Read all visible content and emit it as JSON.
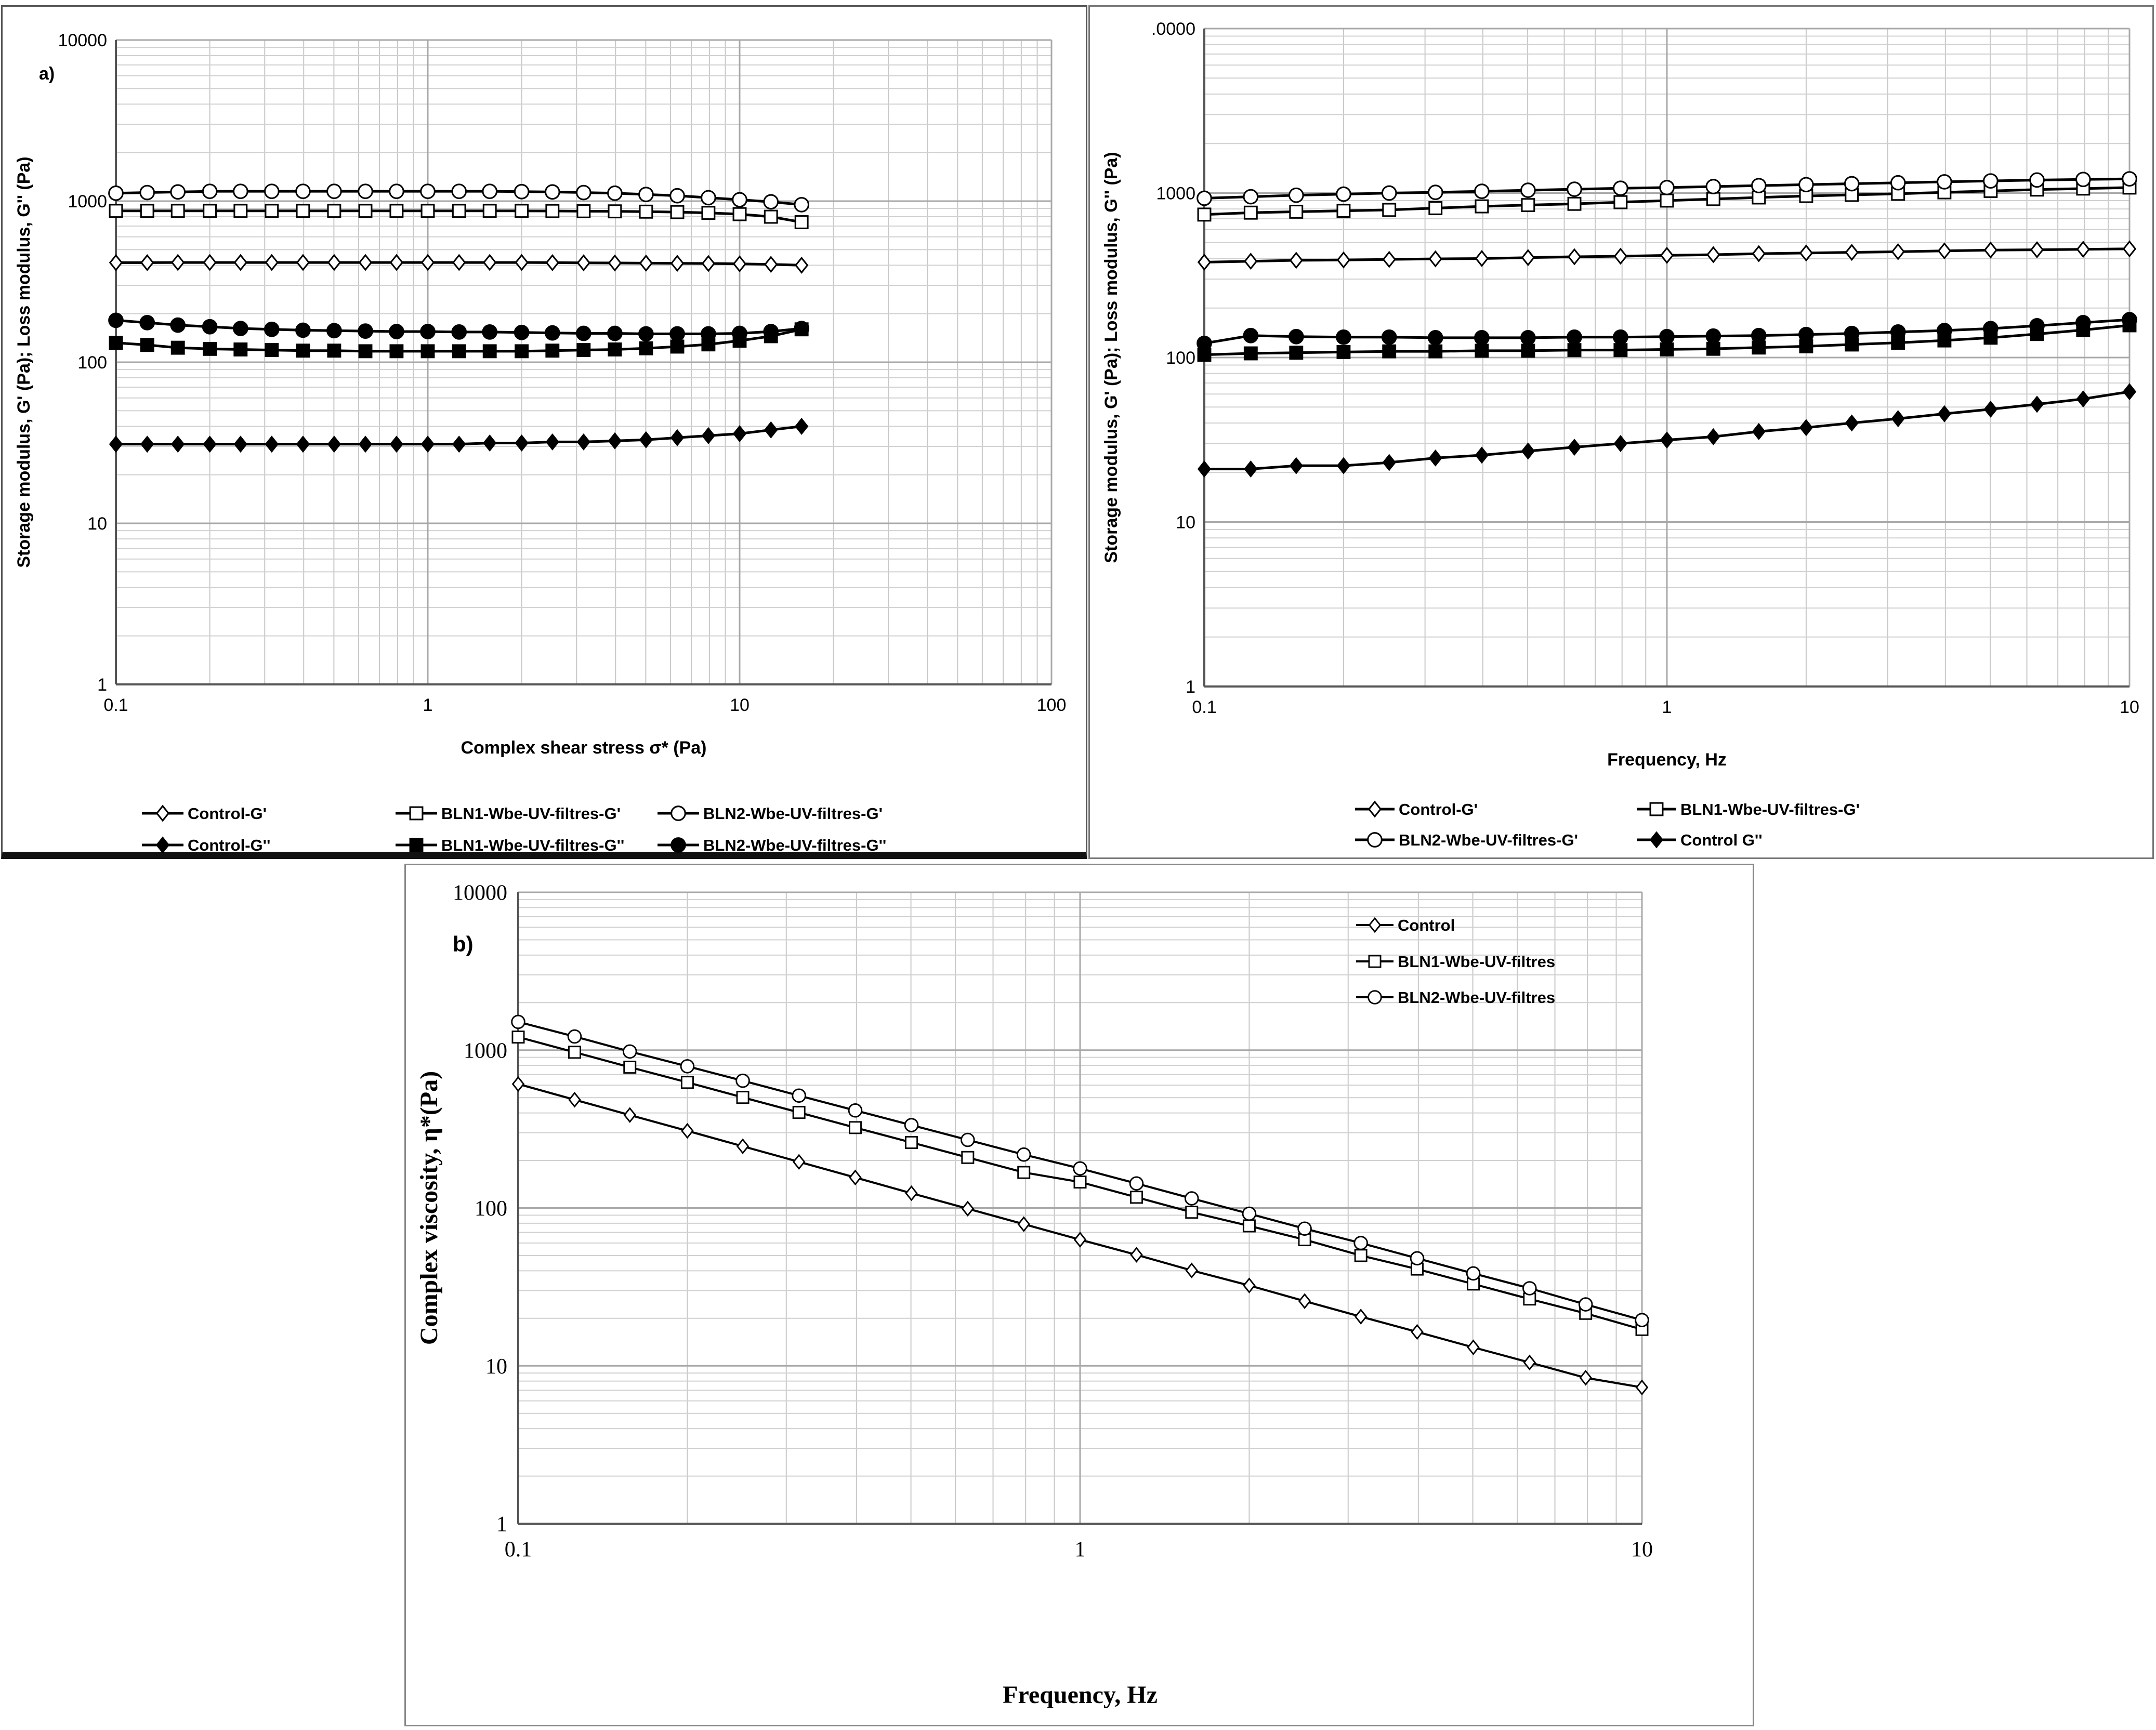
{
  "chart_data": [
    {
      "id": "a",
      "type": "line",
      "panel_label": "a)",
      "xlabel": "Complex shear stress σ* (Pa)",
      "ylabel": "Storage modulus, G' (Pa); Loss modulus, G'' (Pa)",
      "xscale": "log",
      "yscale": "log",
      "xlim": [
        0.1,
        100
      ],
      "ylim": [
        1,
        10000
      ],
      "xticks": [
        "0.1",
        "1",
        "10",
        "100"
      ],
      "yticks": [
        "1",
        "10",
        "100",
        "1000",
        "10000"
      ],
      "grid": true,
      "legend_position": "bottom",
      "x": [
        0.1,
        0.126,
        0.158,
        0.2,
        0.251,
        0.316,
        0.398,
        0.501,
        0.631,
        0.794,
        1.0,
        1.26,
        1.58,
        2.0,
        2.51,
        3.16,
        3.98,
        5.01,
        6.31,
        7.94,
        10.0,
        12.6,
        15.8
      ],
      "series": [
        {
          "name": "Control-G'",
          "marker": "diamond-open",
          "values": [
            415,
            415,
            416,
            416,
            416,
            416,
            416,
            416,
            416,
            416,
            416,
            416,
            416,
            416,
            415,
            414,
            413,
            412,
            411,
            410,
            408,
            405,
            400
          ]
        },
        {
          "name": "BLN1-Wbe-UV-filtres-G'",
          "marker": "square-open",
          "values": [
            870,
            870,
            870,
            870,
            870,
            870,
            870,
            870,
            870,
            870,
            870,
            870,
            870,
            870,
            868,
            866,
            864,
            860,
            855,
            845,
            830,
            800,
            740
          ]
        },
        {
          "name": "BLN2-Wbe-UV-filtres-G'",
          "marker": "circle-open",
          "values": [
            1120,
            1130,
            1140,
            1150,
            1150,
            1150,
            1150,
            1150,
            1150,
            1150,
            1150,
            1150,
            1150,
            1145,
            1140,
            1130,
            1120,
            1100,
            1080,
            1050,
            1020,
            990,
            950
          ]
        },
        {
          "name": "Control-G''",
          "marker": "diamond-filled",
          "values": [
            31,
            31,
            31,
            31,
            31,
            31,
            31,
            31,
            31,
            31,
            31,
            31,
            31.5,
            31.5,
            32,
            32,
            32.5,
            33,
            34,
            35,
            36,
            38,
            40
          ]
        },
        {
          "name": "BLN1-Wbe-UV-filtres-G''",
          "marker": "square-filled",
          "values": [
            132,
            128,
            123,
            121,
            120,
            119,
            118,
            118,
            117,
            117,
            117,
            117,
            117,
            117,
            118,
            119,
            120,
            122,
            125,
            129,
            136,
            145,
            160
          ]
        },
        {
          "name": "BLN2-Wbe-UV-filtres-G''",
          "marker": "circle-filled",
          "values": [
            182,
            176,
            170,
            166,
            162,
            160,
            158,
            157,
            156,
            155,
            155,
            154,
            154,
            153,
            152,
            151,
            151,
            150,
            150,
            150,
            151,
            155,
            162
          ]
        }
      ]
    },
    {
      "id": "c",
      "type": "line",
      "panel_label": "",
      "xlabel": "Frequency, Hz",
      "ylabel": "Storage modulus, G' (Pa); Loss modulus, G'' (Pa)",
      "xscale": "log",
      "yscale": "log",
      "xlim": [
        0.1,
        10
      ],
      "ylim": [
        1,
        10000
      ],
      "xticks": [
        "0.1",
        "1",
        "10"
      ],
      "yticks": [
        "1",
        "10",
        "100",
        "1000",
        ".0000"
      ],
      "grid": true,
      "legend_position": "bottom",
      "x": [
        0.1,
        0.126,
        0.158,
        0.2,
        0.251,
        0.316,
        0.398,
        0.501,
        0.631,
        0.794,
        1.0,
        1.26,
        1.58,
        2.0,
        2.51,
        3.16,
        3.98,
        5.01,
        6.31,
        7.94,
        10.0
      ],
      "series": [
        {
          "name": "Control-G'",
          "marker": "diamond-open",
          "values": [
            380,
            385,
            390,
            392,
            395,
            398,
            400,
            405,
            410,
            413,
            418,
            422,
            428,
            432,
            436,
            440,
            445,
            450,
            452,
            455,
            458
          ]
        },
        {
          "name": "BLN1-Wbe-UV-filtres-G'",
          "marker": "square-open",
          "values": [
            740,
            760,
            770,
            780,
            790,
            810,
            830,
            845,
            860,
            880,
            900,
            920,
            940,
            960,
            975,
            990,
            1010,
            1030,
            1050,
            1065,
            1080
          ]
        },
        {
          "name": "BLN2-Wbe-UV-filtres-G'",
          "marker": "circle-open",
          "values": [
            930,
            950,
            970,
            985,
            1000,
            1010,
            1025,
            1040,
            1055,
            1070,
            1080,
            1095,
            1110,
            1125,
            1140,
            1155,
            1170,
            1185,
            1200,
            1210,
            1220
          ]
        },
        {
          "name": "Control G''",
          "marker": "diamond-filled",
          "values": [
            21,
            21,
            22,
            22,
            23,
            24.5,
            25.5,
            27,
            28.5,
            30,
            31.5,
            33,
            35.5,
            37.5,
            40,
            42.5,
            45.5,
            48.5,
            52,
            56,
            62
          ]
        },
        {
          "name": "",
          "marker": "square-filled",
          "values": [
            104,
            106,
            107,
            108,
            109,
            109,
            110,
            110,
            111,
            111,
            112,
            113,
            115,
            117,
            120,
            123,
            127,
            132,
            139,
            147,
            157
          ]
        },
        {
          "name": "",
          "marker": "circle-filled",
          "values": [
            122,
            136,
            134,
            133,
            133,
            132,
            132,
            132,
            133,
            133,
            134,
            135,
            136,
            138,
            140,
            143,
            146,
            150,
            156,
            163,
            170
          ]
        }
      ]
    },
    {
      "id": "b",
      "type": "line",
      "panel_label": "b)",
      "xlabel": "Frequency, Hz",
      "ylabel": "Complex viscosity,  η*(Pa)",
      "xscale": "log",
      "yscale": "log",
      "xlim": [
        0.1,
        10
      ],
      "ylim": [
        1,
        10000
      ],
      "xticks": [
        "0.1",
        "1",
        "10"
      ],
      "yticks": [
        "1",
        "10",
        "100",
        "1000",
        "10000"
      ],
      "grid": true,
      "legend_position": "top-right",
      "x": [
        0.1,
        0.126,
        0.158,
        0.2,
        0.251,
        0.316,
        0.398,
        0.501,
        0.631,
        0.794,
        1.0,
        1.26,
        1.58,
        2.0,
        2.51,
        3.16,
        3.98,
        5.01,
        6.31,
        7.94,
        10.0
      ],
      "series": [
        {
          "name": "Control",
          "marker": "diamond-open",
          "values": [
            610,
            485,
            388,
            308,
            246,
            196,
            156,
            124,
            99,
            79,
            63,
            50.5,
            40.2,
            32.3,
            25.7,
            20.5,
            16.4,
            13.1,
            10.5,
            8.4,
            7.3
          ]
        },
        {
          "name": "BLN1-Wbe-UV-filtres",
          "marker": "square-open",
          "values": [
            1210,
            970,
            780,
            625,
            502,
            403,
            323,
            260,
            209,
            168,
            146,
            117,
            94,
            77,
            63,
            50,
            41,
            33,
            26.5,
            21.5,
            17
          ]
        },
        {
          "name": "BLN2-Wbe-UV-filtres",
          "marker": "circle-open",
          "values": [
            1510,
            1220,
            980,
            790,
            640,
            515,
            415,
            335,
            270,
            218,
            178,
            143,
            115,
            92,
            74,
            60,
            48,
            38.5,
            31,
            24.5,
            19.5
          ]
        }
      ]
    }
  ]
}
